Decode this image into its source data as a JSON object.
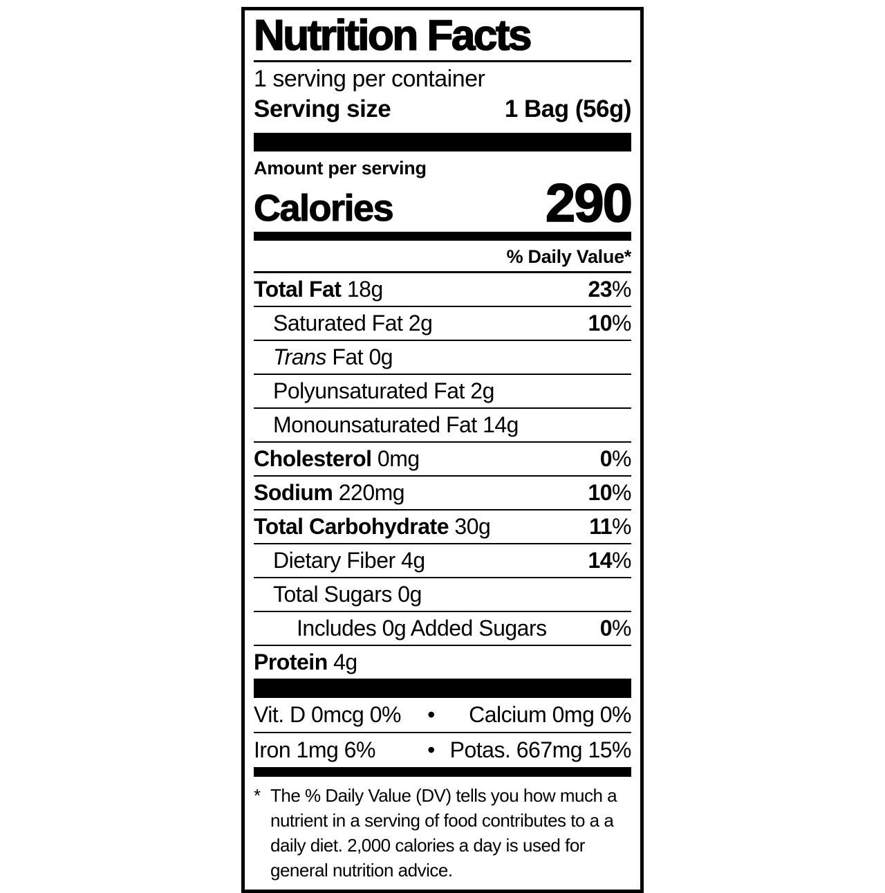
{
  "label": {
    "title": "Nutrition Facts",
    "servings_per_container": "1 serving per container",
    "serving_size": {
      "label": "Serving size",
      "value": "1 Bag (56g)"
    },
    "amount_per_serving": "Amount per serving",
    "calories": {
      "label": "Calories",
      "value": "290"
    },
    "daily_value_header": "% Daily Value*",
    "rows": [
      {
        "name": "Total Fat",
        "amount": "18g",
        "dv": "23",
        "pct": "%"
      },
      {
        "name": "Saturated Fat",
        "amount": "2g",
        "dv": "10",
        "pct": "%"
      },
      {
        "italic": "Trans",
        "name": "Fat",
        "amount": "0g"
      },
      {
        "name": "Polyunsaturated Fat",
        "amount": "2g"
      },
      {
        "name": "Monounsaturated Fat",
        "amount": "14g"
      },
      {
        "name": "Cholesterol",
        "amount": "0mg",
        "dv": "0",
        "pct": "%"
      },
      {
        "name": "Sodium",
        "amount": "220mg",
        "dv": "10",
        "pct": "%"
      },
      {
        "name": "Total Carbohydrate",
        "amount": "30g",
        "dv": "11",
        "pct": "%"
      },
      {
        "name": "Dietary Fiber",
        "amount": "4g",
        "dv": "14",
        "pct": "%"
      },
      {
        "name": "Total Sugars",
        "amount": "0g"
      },
      {
        "name": "Includes 0g Added Sugars",
        "amount": "",
        "dv": "0",
        "pct": "%"
      },
      {
        "name": "Protein",
        "amount": "4g"
      }
    ],
    "micronutrients": {
      "bullet": "•",
      "rows": [
        {
          "left": "Vit. D 0mcg 0%",
          "right": "Calcium 0mg 0%"
        },
        {
          "left": "Iron 1mg 6%",
          "right": "Potas. 667mg 15%"
        }
      ]
    },
    "footnote": {
      "marker": "*",
      "text": "The % Daily Value (DV) tells you how much a nutrient in a serving of food contributes to a a daily diet. 2,000 calories a day is used for general nutrition advice."
    },
    "colors": {
      "ink": "#000000",
      "background": "#ffffff"
    }
  }
}
